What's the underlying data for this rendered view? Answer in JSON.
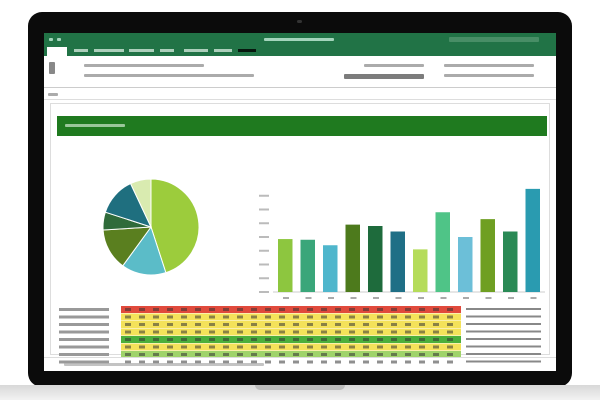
{
  "app": {
    "brand_color": "#217346",
    "banner_color": "#1f7a1f"
  },
  "pie_chart": {
    "type": "pie",
    "slices": [
      {
        "value": 45,
        "color": "#9ccc3c"
      },
      {
        "value": 15,
        "color": "#5bbcc8"
      },
      {
        "value": 14,
        "color": "#5a7f1f"
      },
      {
        "value": 6,
        "color": "#2f6b3a"
      },
      {
        "value": 13,
        "color": "#1f6f7f"
      },
      {
        "value": 7,
        "color": "#d9ebb0"
      }
    ]
  },
  "chart_data": {
    "type": "bar",
    "values": [
      3.85,
      3.8,
      3.4,
      4.9,
      4.8,
      4.4,
      3.1,
      5.8,
      4.0,
      5.3,
      4.4,
      7.5
    ],
    "colors": [
      "#8dc63f",
      "#3aa67a",
      "#4fb6cc",
      "#4d7a1c",
      "#1e6b3c",
      "#1f6f86",
      "#b5dc5a",
      "#4fc487",
      "#6cbfd8",
      "#6f9f22",
      "#2a8a55",
      "#2a9bb0"
    ],
    "ylim": [
      0,
      8
    ],
    "grid": false
  },
  "heatmap": {
    "row_colors": [
      "#e04a3c",
      "#f4e25a",
      "#f4e25a",
      "#f4e25a",
      "#4caf3c",
      "#f4e25a",
      "#9fd36a",
      "#ffffff"
    ]
  }
}
